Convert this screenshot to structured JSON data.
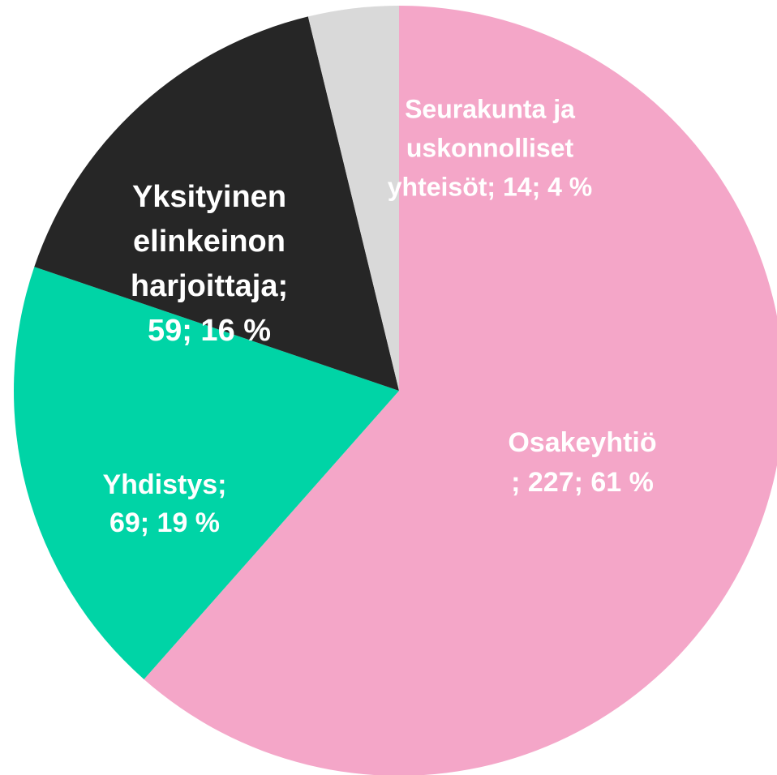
{
  "chart_data": {
    "type": "pie",
    "values": [
      227,
      69,
      59,
      14
    ],
    "value_labels": [
      [
        "Osakeyhtiö",
        "; 227; 61 %"
      ],
      [
        "Yhdistys;",
        "69; 19 %"
      ],
      [
        "Yksityinen",
        "elinkeinon",
        "harjoittaja;",
        "59; 16 %"
      ],
      [
        "Seurakunta ja",
        "uskonnolliset",
        "yhteisöt; 14; 4 %"
      ]
    ],
    "colors": [
      "#f4a6c8",
      "#00d4a6",
      "#262626",
      "#d9d9d9"
    ]
  }
}
